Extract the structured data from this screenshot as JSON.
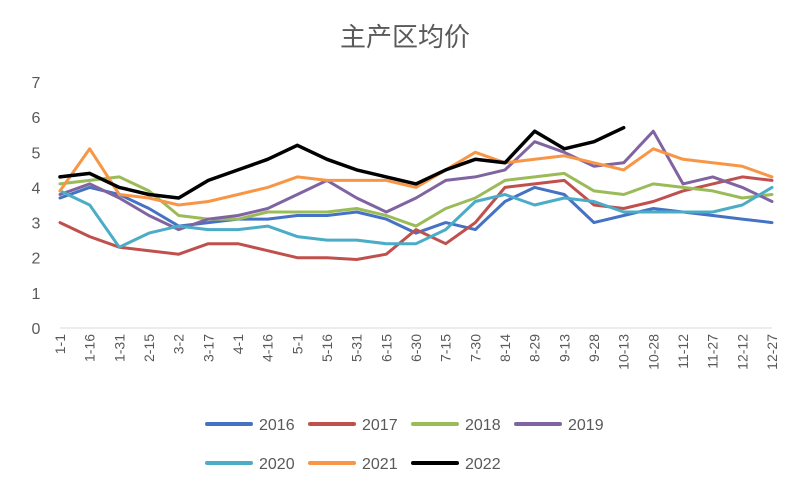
{
  "chart_data": {
    "type": "line",
    "title": "主产区均价",
    "xlabel": "",
    "ylabel": "",
    "ylim": [
      0,
      7
    ],
    "yticks": [
      0,
      1,
      2,
      3,
      4,
      5,
      6,
      7
    ],
    "grid": false,
    "legend_position": "bottom",
    "x_tick_labels": [
      "1-1",
      "1-16",
      "1-31",
      "2-15",
      "3-2",
      "3-17",
      "4-1",
      "4-16",
      "5-1",
      "5-16",
      "5-31",
      "6-15",
      "6-30",
      "7-15",
      "7-30",
      "8-14",
      "8-29",
      "9-13",
      "9-28",
      "10-13",
      "10-28",
      "11-12",
      "11-27",
      "12-12",
      "12-27"
    ],
    "x": [
      "1-1",
      "1-16",
      "1-31",
      "2-15",
      "3-2",
      "3-17",
      "4-1",
      "4-16",
      "5-1",
      "5-16",
      "5-31",
      "6-15",
      "6-30",
      "7-15",
      "7-30",
      "8-14",
      "8-29",
      "9-13",
      "9-28",
      "10-13",
      "10-28",
      "11-12",
      "11-27",
      "12-12",
      "12-27"
    ],
    "series": [
      {
        "name": "2016",
        "color": "#4472C4",
        "width": 3,
        "values": [
          3.7,
          4.0,
          3.8,
          3.4,
          2.9,
          3.0,
          3.1,
          3.1,
          3.2,
          3.2,
          3.3,
          3.1,
          2.7,
          3.0,
          2.8,
          3.6,
          4.0,
          3.8,
          3.0,
          3.2,
          3.4,
          3.3,
          3.2,
          3.1,
          3.0
        ]
      },
      {
        "name": "2017",
        "color": "#C0504D",
        "width": 3,
        "values": [
          3.0,
          2.6,
          2.3,
          2.2,
          2.1,
          2.4,
          2.4,
          2.2,
          2.0,
          2.0,
          1.95,
          2.1,
          2.8,
          2.4,
          3.0,
          4.0,
          4.1,
          4.2,
          3.5,
          3.4,
          3.6,
          3.9,
          4.1,
          4.3,
          4.2
        ]
      },
      {
        "name": "2018",
        "color": "#9BBB59",
        "width": 3,
        "values": [
          4.1,
          4.2,
          4.3,
          3.9,
          3.2,
          3.1,
          3.1,
          3.3,
          3.3,
          3.3,
          3.4,
          3.2,
          2.9,
          3.4,
          3.7,
          4.2,
          4.3,
          4.4,
          3.9,
          3.8,
          4.1,
          4.0,
          3.9,
          3.7,
          3.8
        ]
      },
      {
        "name": "2019",
        "color": "#8064A2",
        "width": 3,
        "values": [
          3.8,
          4.1,
          3.7,
          3.2,
          2.8,
          3.1,
          3.2,
          3.4,
          3.8,
          4.2,
          3.7,
          3.3,
          3.7,
          4.2,
          4.3,
          4.5,
          5.3,
          5.0,
          4.6,
          4.7,
          5.6,
          4.1,
          4.3,
          4.0,
          3.6
        ]
      },
      {
        "name": "2020",
        "color": "#4BACC6",
        "width": 3,
        "values": [
          3.9,
          3.5,
          2.3,
          2.7,
          2.9,
          2.8,
          2.8,
          2.9,
          2.6,
          2.5,
          2.5,
          2.4,
          2.4,
          2.8,
          3.6,
          3.8,
          3.5,
          3.7,
          3.6,
          3.3,
          3.3,
          3.3,
          3.3,
          3.5,
          4.0
        ]
      },
      {
        "name": "2021",
        "color": "#F79646",
        "width": 3,
        "values": [
          3.9,
          5.1,
          3.8,
          3.7,
          3.5,
          3.6,
          3.8,
          4.0,
          4.3,
          4.2,
          4.2,
          4.2,
          4.0,
          4.5,
          5.0,
          4.7,
          4.8,
          4.9,
          4.7,
          4.5,
          5.1,
          4.8,
          4.7,
          4.6,
          4.3
        ]
      },
      {
        "name": "2022",
        "color": "#000000",
        "width": 3.5,
        "values": [
          4.3,
          4.4,
          4.0,
          3.8,
          3.7,
          4.2,
          4.5,
          4.8,
          5.2,
          4.8,
          4.5,
          4.3,
          4.1,
          4.5,
          4.8,
          4.7,
          5.6,
          5.1,
          5.3,
          5.7,
          null,
          null,
          null,
          null,
          null
        ]
      }
    ]
  }
}
